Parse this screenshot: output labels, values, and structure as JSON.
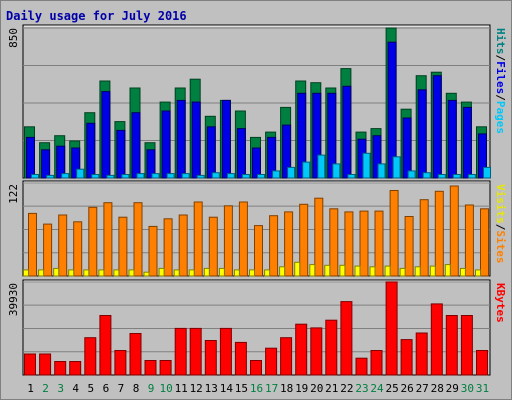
{
  "chart_data": [
    {
      "type": "bar",
      "title": "Daily usage for July 2016",
      "categories": [
        "1",
        "2",
        "3",
        "4",
        "5",
        "6",
        "7",
        "8",
        "9",
        "10",
        "11",
        "12",
        "13",
        "14",
        "15",
        "16",
        "17",
        "18",
        "19",
        "20",
        "21",
        "22",
        "23",
        "24",
        "25",
        "26",
        "27",
        "28",
        "29",
        "30",
        "31"
      ],
      "weekend_days": [
        "2",
        "3",
        "9",
        "10",
        "16",
        "17",
        "23",
        "24",
        "30",
        "31"
      ],
      "ylim": [
        0,
        850
      ],
      "ytick_label": "850",
      "axis_label_parts": [
        "Pages",
        "Files",
        "Hits"
      ],
      "series": [
        {
          "name": "Hits",
          "values": [
            290,
            200,
            240,
            210,
            370,
            550,
            320,
            510,
            200,
            430,
            510,
            560,
            350,
            440,
            380,
            230,
            260,
            400,
            550,
            540,
            510,
            620,
            260,
            280,
            850,
            390,
            580,
            600,
            480,
            430,
            290
          ]
        },
        {
          "name": "Files",
          "values": [
            230,
            160,
            180,
            170,
            310,
            490,
            270,
            370,
            160,
            380,
            440,
            430,
            290,
            440,
            280,
            170,
            230,
            300,
            480,
            480,
            480,
            520,
            220,
            240,
            770,
            340,
            500,
            580,
            440,
            400,
            250
          ]
        },
        {
          "name": "Pages",
          "values": [
            20,
            15,
            25,
            50,
            20,
            15,
            20,
            25,
            25,
            25,
            25,
            15,
            30,
            25,
            20,
            20,
            40,
            60,
            90,
            130,
            80,
            20,
            140,
            80,
            120,
            40,
            30,
            20,
            20,
            20,
            60
          ]
        }
      ]
    },
    {
      "type": "bar",
      "ylim": [
        0,
        122
      ],
      "ytick_label": "122",
      "axis_label_parts": [
        "Sites",
        "Visits"
      ],
      "series": [
        {
          "name": "Visits",
          "values": [
            82,
            68,
            80,
            71,
            90,
            96,
            77,
            96,
            65,
            75,
            80,
            97,
            77,
            92,
            97,
            66,
            79,
            84,
            94,
            102,
            88,
            84,
            85,
            85,
            112,
            78,
            100,
            111,
            118,
            93,
            88
          ]
        },
        {
          "name": "Sites",
          "values": [
            8,
            8,
            10,
            8,
            8,
            8,
            8,
            8,
            5,
            10,
            8,
            8,
            10,
            10,
            8,
            8,
            8,
            12,
            18,
            15,
            14,
            14,
            13,
            12,
            13,
            10,
            12,
            13,
            15,
            10,
            8
          ]
        }
      ]
    },
    {
      "type": "bar",
      "ylim": [
        0,
        39930
      ],
      "ytick_label": "39930",
      "axis_label_parts": [
        "KBytes"
      ],
      "series": [
        {
          "name": "KBytes",
          "values": [
            9000,
            9000,
            5800,
            5800,
            16000,
            25500,
            10500,
            17800,
            6200,
            6200,
            20000,
            20000,
            14800,
            20000,
            14000,
            6200,
            11500,
            16000,
            21800,
            20200,
            23500,
            31500,
            7200,
            10500,
            39930,
            15200,
            18000,
            30500,
            25500,
            25500,
            10500
          ]
        }
      ]
    }
  ]
}
